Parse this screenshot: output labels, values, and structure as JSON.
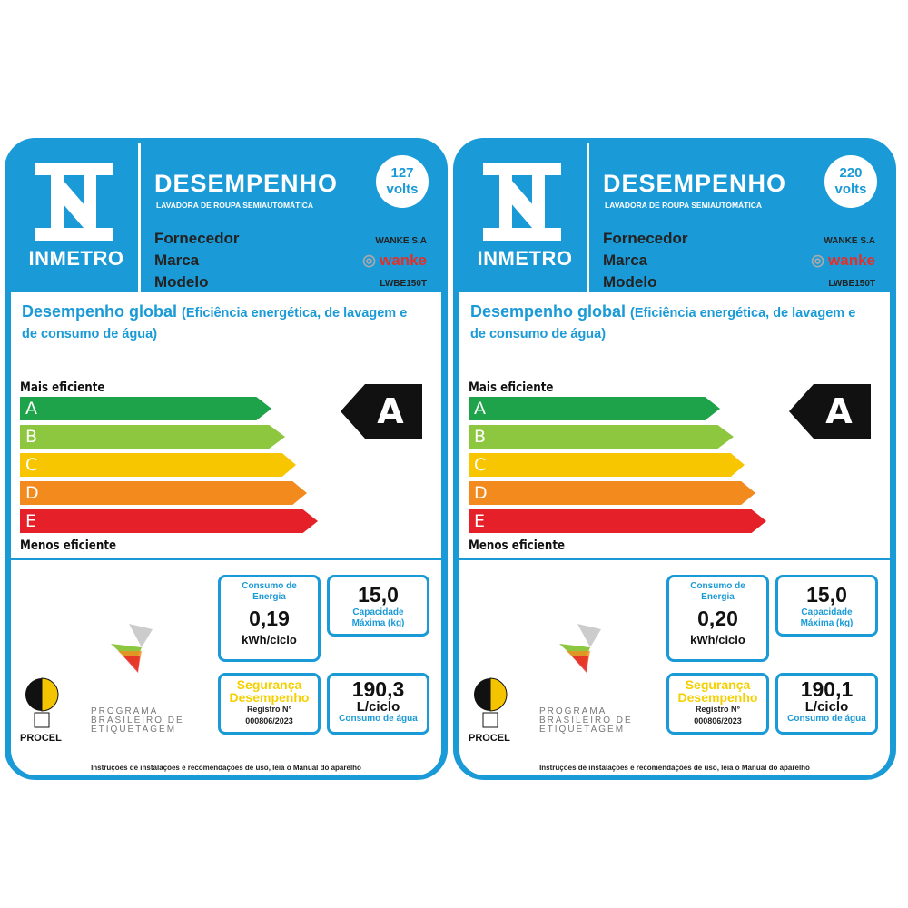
{
  "labels": [
    {
      "logo_text": "INMETRO",
      "title": "DESEMPENHO",
      "subtitle": "LAVADORA DE ROUPA SEMIAUTOMÁTICA",
      "voltage_value": "127",
      "voltage_unit": "volts",
      "fields": {
        "fornecedor": "Fornecedor",
        "marca": "Marca",
        "modelo": "Modelo"
      },
      "values": {
        "fornecedor": "WANKE S.A",
        "marca": "wanke",
        "modelo": "LWBE150T"
      },
      "section_title": "Desempenho global",
      "section_subtitle": "(Eficiência energética, de lavagem e de consumo de água)",
      "most_efficient": "Mais eficiente",
      "least_efficient": "Menos eficiente",
      "classes": [
        "A",
        "B",
        "C",
        "D",
        "E"
      ],
      "rating": "A",
      "energy": {
        "label": "Consumo de Energia",
        "value": "0,19",
        "unit": "kWh/ciclo"
      },
      "capacity": {
        "value": "15,0",
        "label": "Capacidade Máxima (kg)"
      },
      "safety": {
        "line1": "Segurança",
        "line2": "Desempenho",
        "reg_label": "Registro N°",
        "reg_number": "000806/2023"
      },
      "water": {
        "value": "190,3",
        "unit": "L/ciclo",
        "label": "Consumo de água"
      },
      "procel": "PROCEL",
      "pbe": "PROGRAMA BRASILEIRO DE ETIQUETAGEM",
      "footer": "Instruções de instalações e recomendações de uso, leia o Manual do aparelho"
    },
    {
      "logo_text": "INMETRO",
      "title": "DESEMPENHO",
      "subtitle": "LAVADORA DE ROUPA SEMIAUTOMÁTICA",
      "voltage_value": "220",
      "voltage_unit": "volts",
      "fields": {
        "fornecedor": "Fornecedor",
        "marca": "Marca",
        "modelo": "Modelo"
      },
      "values": {
        "fornecedor": "WANKE S.A",
        "marca": "wanke",
        "modelo": "LWBE150T"
      },
      "section_title": "Desempenho global",
      "section_subtitle": "(Eficiência energética, de lavagem e de consumo de água)",
      "most_efficient": "Mais eficiente",
      "least_efficient": "Menos eficiente",
      "classes": [
        "A",
        "B",
        "C",
        "D",
        "E"
      ],
      "rating": "A",
      "energy": {
        "label": "Consumo de Energia",
        "value": "0,20",
        "unit": "kWh/ciclo"
      },
      "capacity": {
        "value": "15,0",
        "label": "Capacidade Máxima (kg)"
      },
      "safety": {
        "line1": "Segurança",
        "line2": "Desempenho",
        "reg_label": "Registro N°",
        "reg_number": "000806/2023"
      },
      "water": {
        "value": "190,1",
        "unit": "L/ciclo",
        "label": "Consumo de água"
      },
      "procel": "PROCEL",
      "pbe": "PROGRAMA BRASILEIRO DE ETIQUETAGEM",
      "footer": "Instruções de instalações e recomendações de uso, leia o Manual do aparelho"
    }
  ],
  "colors": {
    "brand_blue": "#1a9ad6",
    "bars": [
      "#1fa34a",
      "#8dc63f",
      "#f7c600",
      "#f28a1e",
      "#e62028"
    ]
  }
}
